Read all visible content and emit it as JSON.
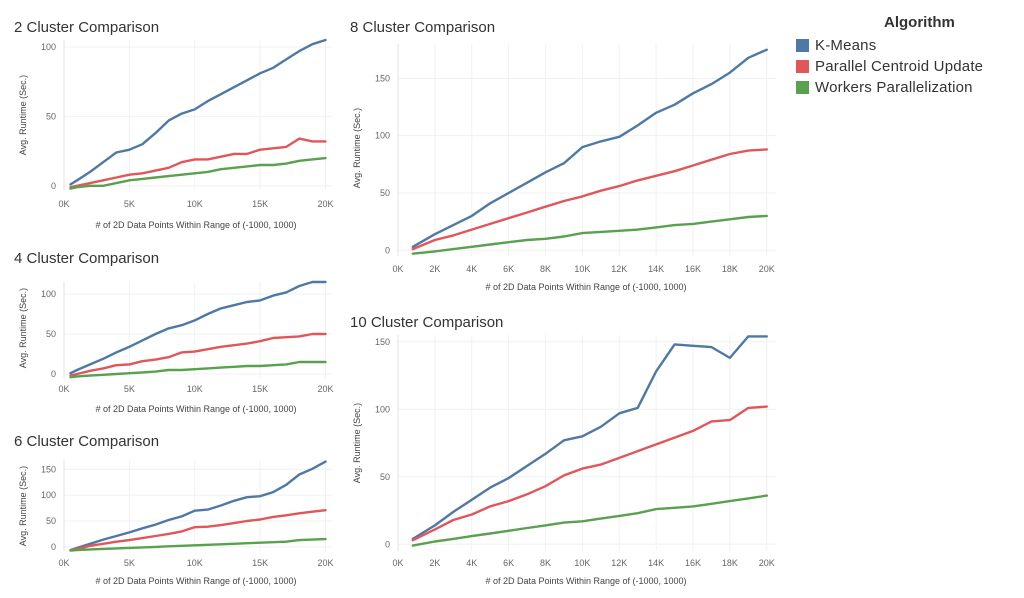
{
  "legend": {
    "title": "Algorithm",
    "items": [
      {
        "label": "K-Means",
        "color": "#4e79a7"
      },
      {
        "label": "Parallel Centroid Update",
        "color": "#e15759"
      },
      {
        "label": "Workers Parallelization",
        "color": "#59a14f"
      }
    ]
  },
  "chart_data": [
    {
      "type": "line",
      "title": "2 Cluster Comparison",
      "xlabel": "# of 2D Data Points Within Range of (-1000, 1000)",
      "ylabel": "Avg. Runtime (Sec.)",
      "xlim": [
        0,
        20500
      ],
      "ylim": [
        -3,
        105
      ],
      "xticks": [
        0,
        5000,
        10000,
        15000,
        20000
      ],
      "xtick_labels": [
        "0K",
        "5K",
        "10K",
        "15K",
        "20K"
      ],
      "yticks": [
        0,
        50,
        100
      ],
      "x": [
        500,
        1000,
        2000,
        3000,
        4000,
        5000,
        6000,
        7000,
        8000,
        9000,
        10000,
        11000,
        12000,
        13000,
        14000,
        15000,
        16000,
        17000,
        18000,
        19000,
        20000
      ],
      "series": [
        {
          "name": "K-Means",
          "color": "#4e79a7",
          "values": [
            1,
            4,
            10,
            17,
            24,
            26,
            30,
            38,
            47,
            52,
            55,
            61,
            66,
            71,
            76,
            81,
            85,
            91,
            97,
            102,
            105
          ]
        },
        {
          "name": "Parallel Centroid Update",
          "color": "#e15759",
          "values": [
            -1,
            0,
            2,
            4,
            6,
            8,
            9,
            11,
            13,
            17,
            19,
            19,
            21,
            23,
            23,
            26,
            27,
            28,
            34,
            32,
            32
          ]
        },
        {
          "name": "Workers Parallelization",
          "color": "#59a14f",
          "values": [
            -2,
            -1,
            0,
            0,
            2,
            4,
            5,
            6,
            7,
            8,
            9,
            10,
            12,
            13,
            14,
            15,
            15,
            16,
            18,
            19,
            20
          ]
        }
      ]
    },
    {
      "type": "line",
      "title": "4 Cluster Comparison",
      "xlabel": "# of 2D Data Points Within Range of (-1000, 1000)",
      "ylabel": "Avg. Runtime (Sec.)",
      "xlim": [
        0,
        20500
      ],
      "ylim": [
        -5,
        115
      ],
      "xticks": [
        0,
        5000,
        10000,
        15000,
        20000
      ],
      "xtick_labels": [
        "0K",
        "5K",
        "10K",
        "15K",
        "20K"
      ],
      "yticks": [
        0,
        50,
        100
      ],
      "x": [
        500,
        1000,
        2000,
        3000,
        4000,
        5000,
        6000,
        7000,
        8000,
        9000,
        10000,
        11000,
        12000,
        13000,
        14000,
        15000,
        16000,
        17000,
        18000,
        19000,
        20000
      ],
      "series": [
        {
          "name": "K-Means",
          "color": "#4e79a7",
          "values": [
            1,
            5,
            12,
            19,
            27,
            34,
            42,
            50,
            57,
            61,
            67,
            75,
            82,
            86,
            90,
            92,
            98,
            102,
            110,
            115,
            115
          ]
        },
        {
          "name": "Parallel Centroid Update",
          "color": "#e15759",
          "values": [
            -2,
            0,
            4,
            7,
            11,
            12,
            16,
            18,
            21,
            27,
            28,
            31,
            34,
            36,
            38,
            41,
            45,
            46,
            47,
            50,
            50
          ]
        },
        {
          "name": "Workers Parallelization",
          "color": "#59a14f",
          "values": [
            -4,
            -3,
            -2,
            -1,
            0,
            1,
            2,
            3,
            5,
            5,
            6,
            7,
            8,
            9,
            10,
            10,
            11,
            12,
            15,
            15,
            15
          ]
        }
      ]
    },
    {
      "type": "line",
      "title": "6 Cluster Comparison",
      "xlabel": "# of 2D Data Points Within Range of (-1000, 1000)",
      "ylabel": "Avg. Runtime (Sec.)",
      "xlim": [
        0,
        20500
      ],
      "ylim": [
        -8,
        168
      ],
      "xticks": [
        0,
        5000,
        10000,
        15000,
        20000
      ],
      "xtick_labels": [
        "0K",
        "5K",
        "10K",
        "15K",
        "20K"
      ],
      "yticks": [
        0,
        50,
        100,
        150
      ],
      "x": [
        500,
        1000,
        2000,
        3000,
        4000,
        5000,
        6000,
        7000,
        8000,
        9000,
        10000,
        11000,
        12000,
        13000,
        14000,
        15000,
        16000,
        17000,
        18000,
        19000,
        20000
      ],
      "series": [
        {
          "name": "K-Means",
          "color": "#4e79a7",
          "values": [
            -6,
            -2,
            6,
            14,
            21,
            28,
            36,
            43,
            52,
            59,
            70,
            72,
            80,
            89,
            96,
            98,
            106,
            120,
            140,
            151,
            165
          ]
        },
        {
          "name": "Parallel Centroid Update",
          "color": "#e15759",
          "values": [
            -6,
            -4,
            2,
            6,
            10,
            13,
            17,
            21,
            25,
            30,
            38,
            39,
            42,
            46,
            50,
            53,
            58,
            61,
            65,
            68,
            71
          ]
        },
        {
          "name": "Workers Parallelization",
          "color": "#59a14f",
          "values": [
            -7,
            -6,
            -5,
            -4,
            -3,
            -2,
            -1,
            0,
            1,
            2,
            3,
            4,
            5,
            6,
            7,
            8,
            9,
            10,
            13,
            14,
            15
          ]
        }
      ]
    },
    {
      "type": "line",
      "title": "8 Cluster Comparison",
      "xlabel": "# of 2D Data Points Within Range of (-1000, 1000)",
      "ylabel": "Avg. Runtime (Sec.)",
      "xlim": [
        0,
        20500
      ],
      "ylim": [
        -5,
        180
      ],
      "xticks": [
        0,
        2000,
        4000,
        6000,
        8000,
        10000,
        12000,
        14000,
        16000,
        18000,
        20000
      ],
      "xtick_labels": [
        "0K",
        "2K",
        "4K",
        "6K",
        "8K",
        "10K",
        "12K",
        "14K",
        "16K",
        "18K",
        "20K"
      ],
      "yticks": [
        0,
        50,
        100,
        150
      ],
      "x": [
        800,
        2000,
        3000,
        4000,
        5000,
        6000,
        7000,
        8000,
        9000,
        10000,
        11000,
        12000,
        13000,
        14000,
        15000,
        16000,
        17000,
        18000,
        19000,
        20000
      ],
      "series": [
        {
          "name": "K-Means",
          "color": "#4e79a7",
          "values": [
            3,
            14,
            22,
            30,
            41,
            50,
            59,
            68,
            76,
            90,
            95,
            99,
            109,
            120,
            127,
            137,
            145,
            155,
            168,
            175
          ]
        },
        {
          "name": "Parallel Centroid Update",
          "color": "#e15759",
          "values": [
            1,
            9,
            13,
            18,
            23,
            28,
            33,
            38,
            43,
            47,
            52,
            56,
            61,
            65,
            69,
            74,
            79,
            84,
            87,
            88
          ]
        },
        {
          "name": "Workers Parallelization",
          "color": "#59a14f",
          "values": [
            -3,
            -1,
            1,
            3,
            5,
            7,
            9,
            10,
            12,
            15,
            16,
            17,
            18,
            20,
            22,
            23,
            25,
            27,
            29,
            30
          ]
        }
      ]
    },
    {
      "type": "line",
      "title": "10 Cluster Comparison",
      "xlabel": "# of 2D Data Points Within Range of (-1000, 1000)",
      "ylabel": "Avg. Runtime (Sec.)",
      "xlim": [
        0,
        20500
      ],
      "ylim": [
        -5,
        155
      ],
      "xticks": [
        0,
        2000,
        4000,
        6000,
        8000,
        10000,
        12000,
        14000,
        16000,
        18000,
        20000
      ],
      "xtick_labels": [
        "0K",
        "2K",
        "4K",
        "6K",
        "8K",
        "10K",
        "12K",
        "14K",
        "16K",
        "18K",
        "20K"
      ],
      "yticks": [
        0,
        50,
        100,
        150
      ],
      "x": [
        800,
        2000,
        3000,
        4000,
        5000,
        6000,
        7000,
        8000,
        9000,
        10000,
        11000,
        12000,
        13000,
        14000,
        15000,
        16000,
        17000,
        18000,
        19000,
        20000
      ],
      "series": [
        {
          "name": "K-Means",
          "color": "#4e79a7",
          "values": [
            4,
            14,
            24,
            33,
            42,
            49,
            58,
            67,
            77,
            80,
            87,
            97,
            101,
            128,
            148,
            147,
            146,
            138,
            154,
            154
          ]
        },
        {
          "name": "Parallel Centroid Update",
          "color": "#e15759",
          "values": [
            3,
            11,
            18,
            22,
            28,
            32,
            37,
            43,
            51,
            56,
            59,
            64,
            69,
            74,
            79,
            84,
            91,
            92,
            101,
            102
          ]
        },
        {
          "name": "Workers Parallelization",
          "color": "#59a14f",
          "values": [
            -1,
            2,
            4,
            6,
            8,
            10,
            12,
            14,
            16,
            17,
            19,
            21,
            23,
            26,
            27,
            28,
            30,
            32,
            34,
            36
          ]
        }
      ]
    }
  ]
}
